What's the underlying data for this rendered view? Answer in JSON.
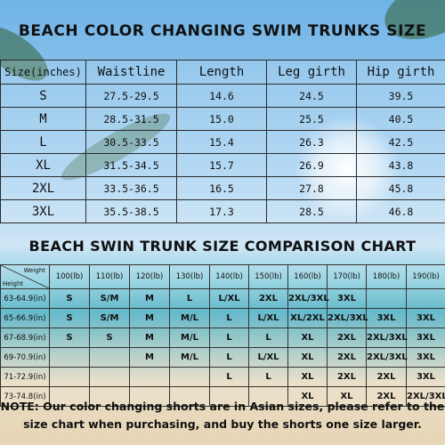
{
  "title": "BEACH COLOR CHANGING SWIM TRUNKS SIZE",
  "size_table": {
    "headers": [
      "Size(inches)",
      "Waistline",
      "Length",
      "Leg girth",
      "Hip girth"
    ],
    "rows": [
      {
        "size": "S",
        "waist": "27.5-29.5",
        "length": "14.6",
        "leg": "24.5",
        "hip": "39.5"
      },
      {
        "size": "M",
        "waist": "28.5-31.5",
        "length": "15.0",
        "leg": "25.5",
        "hip": "40.5"
      },
      {
        "size": "L",
        "waist": "30.5-33.5",
        "length": "15.4",
        "leg": "26.3",
        "hip": "42.5"
      },
      {
        "size": "XL",
        "waist": "31.5-34.5",
        "length": "15.7",
        "leg": "26.9",
        "hip": "43.8"
      },
      {
        "size": "2XL",
        "waist": "33.5-36.5",
        "length": "16.5",
        "leg": "27.8",
        "hip": "45.8"
      },
      {
        "size": "3XL",
        "waist": "35.5-38.5",
        "length": "17.3",
        "leg": "28.5",
        "hip": "46.8"
      }
    ]
  },
  "comparison": {
    "title": "BEACH SWIN TRUNK SIZE COMPARISON CHART",
    "corner_weight": "Weight",
    "corner_height": "Height",
    "weights": [
      "100(lb)",
      "110(lb)",
      "120(lb)",
      "130(lb)",
      "140(lb)",
      "150(lb)",
      "160(lb)",
      "170(lb)",
      "180(lb)",
      "190(lb)"
    ],
    "rows": [
      {
        "height": "63-64.9(in)",
        "cells": [
          "S",
          "S/M",
          "M",
          "L",
          "L/XL",
          "2XL",
          "2XL/3XL",
          "3XL",
          "",
          ""
        ]
      },
      {
        "height": "65-66.9(in)",
        "cells": [
          "S",
          "S/M",
          "M",
          "M/L",
          "L",
          "L/XL",
          "XL/2XL",
          "2XL/3XL",
          "3XL",
          "3XL"
        ]
      },
      {
        "height": "67-68.9(in)",
        "cells": [
          "S",
          "S",
          "M",
          "M/L",
          "L",
          "L",
          "XL",
          "2XL",
          "2XL/3XL",
          "3XL"
        ]
      },
      {
        "height": "69-70.9(in)",
        "cells": [
          "",
          "",
          "M",
          "M/L",
          "L",
          "L/XL",
          "XL",
          "2XL",
          "2XL/3XL",
          "3XL"
        ]
      },
      {
        "height": "71-72.9(in)",
        "cells": [
          "",
          "",
          "",
          "",
          "L",
          "L",
          "XL",
          "2XL",
          "2XL",
          "3XL"
        ]
      },
      {
        "height": "73-74.8(in)",
        "cells": [
          "",
          "",
          "",
          "",
          "",
          "",
          "XL",
          "XL",
          "2XL",
          "2XL/3XL"
        ]
      }
    ]
  },
  "note": {
    "line1": "NOTE: Our color changing shorts are in Asian sizes, please refer to the",
    "line2": "size chart when purchasing, and buy the shorts one size larger."
  }
}
